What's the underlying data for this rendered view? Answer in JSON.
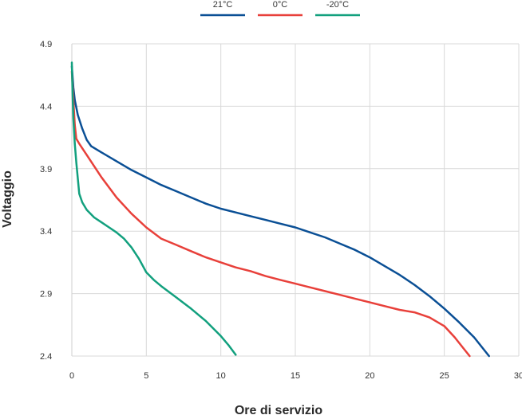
{
  "chart_data": {
    "type": "line",
    "title": "",
    "xlabel": "Ore di servizio",
    "ylabel": "Voltaggio",
    "xlim": [
      0,
      30
    ],
    "ylim": [
      2.4,
      4.9
    ],
    "x_ticks": [
      "0",
      "5",
      "10",
      "15",
      "20",
      "25",
      "30"
    ],
    "y_ticks": [
      "2.4",
      "2.9",
      "3.4",
      "3.9",
      "4.4",
      "4.9"
    ],
    "grid": true,
    "legend_position": "top-center",
    "series": [
      {
        "name": "21°C",
        "color": "#0a4f95",
        "points": [
          [
            0.0,
            4.72
          ],
          [
            0.1,
            4.55
          ],
          [
            0.2,
            4.45
          ],
          [
            0.4,
            4.33
          ],
          [
            0.7,
            4.22
          ],
          [
            1.0,
            4.13
          ],
          [
            1.3,
            4.08
          ],
          [
            2.0,
            4.03
          ],
          [
            3.0,
            3.96
          ],
          [
            4.0,
            3.89
          ],
          [
            5.0,
            3.83
          ],
          [
            6.0,
            3.77
          ],
          [
            7.0,
            3.72
          ],
          [
            8.0,
            3.67
          ],
          [
            9.0,
            3.62
          ],
          [
            10.0,
            3.58
          ],
          [
            11.0,
            3.55
          ],
          [
            12.0,
            3.52
          ],
          [
            13.0,
            3.49
          ],
          [
            14.0,
            3.46
          ],
          [
            15.0,
            3.43
          ],
          [
            16.0,
            3.39
          ],
          [
            17.0,
            3.35
          ],
          [
            18.0,
            3.3
          ],
          [
            19.0,
            3.25
          ],
          [
            20.0,
            3.19
          ],
          [
            21.0,
            3.12
          ],
          [
            22.0,
            3.05
          ],
          [
            23.0,
            2.97
          ],
          [
            24.0,
            2.88
          ],
          [
            25.0,
            2.78
          ],
          [
            26.0,
            2.67
          ],
          [
            27.0,
            2.55
          ],
          [
            28.0,
            2.4
          ]
        ]
      },
      {
        "name": "0°C",
        "color": "#e8403a",
        "points": [
          [
            0.0,
            4.68
          ],
          [
            0.1,
            4.45
          ],
          [
            0.2,
            4.25
          ],
          [
            0.3,
            4.14
          ],
          [
            0.5,
            4.1
          ],
          [
            1.0,
            4.01
          ],
          [
            1.5,
            3.92
          ],
          [
            2.0,
            3.83
          ],
          [
            3.0,
            3.67
          ],
          [
            4.0,
            3.54
          ],
          [
            5.0,
            3.43
          ],
          [
            6.0,
            3.34
          ],
          [
            7.0,
            3.29
          ],
          [
            8.0,
            3.24
          ],
          [
            9.0,
            3.19
          ],
          [
            10.0,
            3.15
          ],
          [
            11.0,
            3.11
          ],
          [
            12.0,
            3.08
          ],
          [
            13.0,
            3.04
          ],
          [
            14.0,
            3.01
          ],
          [
            15.0,
            2.98
          ],
          [
            16.0,
            2.95
          ],
          [
            17.0,
            2.92
          ],
          [
            18.0,
            2.89
          ],
          [
            19.0,
            2.86
          ],
          [
            20.0,
            2.83
          ],
          [
            21.0,
            2.8
          ],
          [
            22.0,
            2.77
          ],
          [
            23.0,
            2.75
          ],
          [
            24.0,
            2.71
          ],
          [
            25.0,
            2.64
          ],
          [
            25.7,
            2.55
          ],
          [
            26.3,
            2.46
          ],
          [
            26.7,
            2.4
          ]
        ]
      },
      {
        "name": "-20°C",
        "color": "#12a07e",
        "points": [
          [
            0.0,
            4.75
          ],
          [
            0.05,
            4.5
          ],
          [
            0.1,
            4.3
          ],
          [
            0.2,
            4.1
          ],
          [
            0.3,
            3.95
          ],
          [
            0.4,
            3.82
          ],
          [
            0.5,
            3.7
          ],
          [
            0.7,
            3.63
          ],
          [
            1.0,
            3.57
          ],
          [
            1.5,
            3.51
          ],
          [
            2.0,
            3.47
          ],
          [
            2.5,
            3.43
          ],
          [
            3.0,
            3.39
          ],
          [
            3.5,
            3.34
          ],
          [
            4.0,
            3.27
          ],
          [
            4.5,
            3.18
          ],
          [
            5.0,
            3.07
          ],
          [
            5.5,
            3.01
          ],
          [
            6.0,
            2.96
          ],
          [
            7.0,
            2.87
          ],
          [
            8.0,
            2.78
          ],
          [
            9.0,
            2.68
          ],
          [
            10.0,
            2.56
          ],
          [
            10.5,
            2.49
          ],
          [
            11.0,
            2.41
          ]
        ]
      }
    ]
  }
}
